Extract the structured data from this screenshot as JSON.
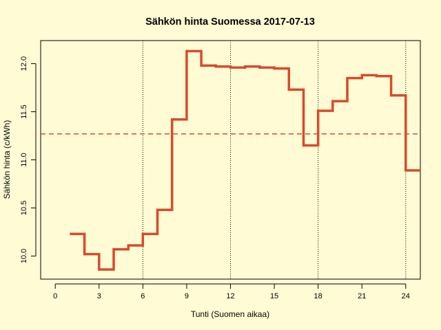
{
  "chart_data": {
    "type": "line",
    "step": true,
    "title": "Sähkön hinta Suomessa 2017-07-13",
    "xlabel": "Tunti (Suomen aikaa)",
    "ylabel": "Sähkön hinta (c/kWh)",
    "xlim": [
      -1,
      25
    ],
    "ylim": [
      9.76,
      12.24
    ],
    "x_ticks": [
      0,
      3,
      6,
      9,
      12,
      15,
      18,
      21,
      24
    ],
    "y_ticks": [
      10.0,
      10.5,
      11.0,
      11.5,
      12.0
    ],
    "x_tick_labels": [
      "0",
      "3",
      "6",
      "9",
      "12",
      "15",
      "18",
      "21",
      "24"
    ],
    "y_tick_labels": [
      "10.0",
      "10.5",
      "11.0",
      "11.5",
      "12.0"
    ],
    "vertical_reference_lines": [
      6,
      12,
      18,
      24
    ],
    "mean_line": 11.27,
    "colors": {
      "line": "#D94A2B",
      "mean_line": "#D94A2B",
      "background": "#FFFBD4"
    },
    "series": [
      {
        "x": [
          1,
          2,
          3,
          4,
          5,
          6,
          7,
          8,
          9,
          10,
          11,
          12,
          13,
          14,
          15,
          16,
          17,
          18,
          19,
          20,
          21,
          22,
          23,
          24
        ],
        "values": [
          10.23,
          10.02,
          9.86,
          10.07,
          10.11,
          10.23,
          10.48,
          11.42,
          12.13,
          11.98,
          11.97,
          11.96,
          11.97,
          11.96,
          11.95,
          11.73,
          11.15,
          11.51,
          11.61,
          11.85,
          11.88,
          11.87,
          11.67,
          10.89
        ]
      }
    ]
  }
}
